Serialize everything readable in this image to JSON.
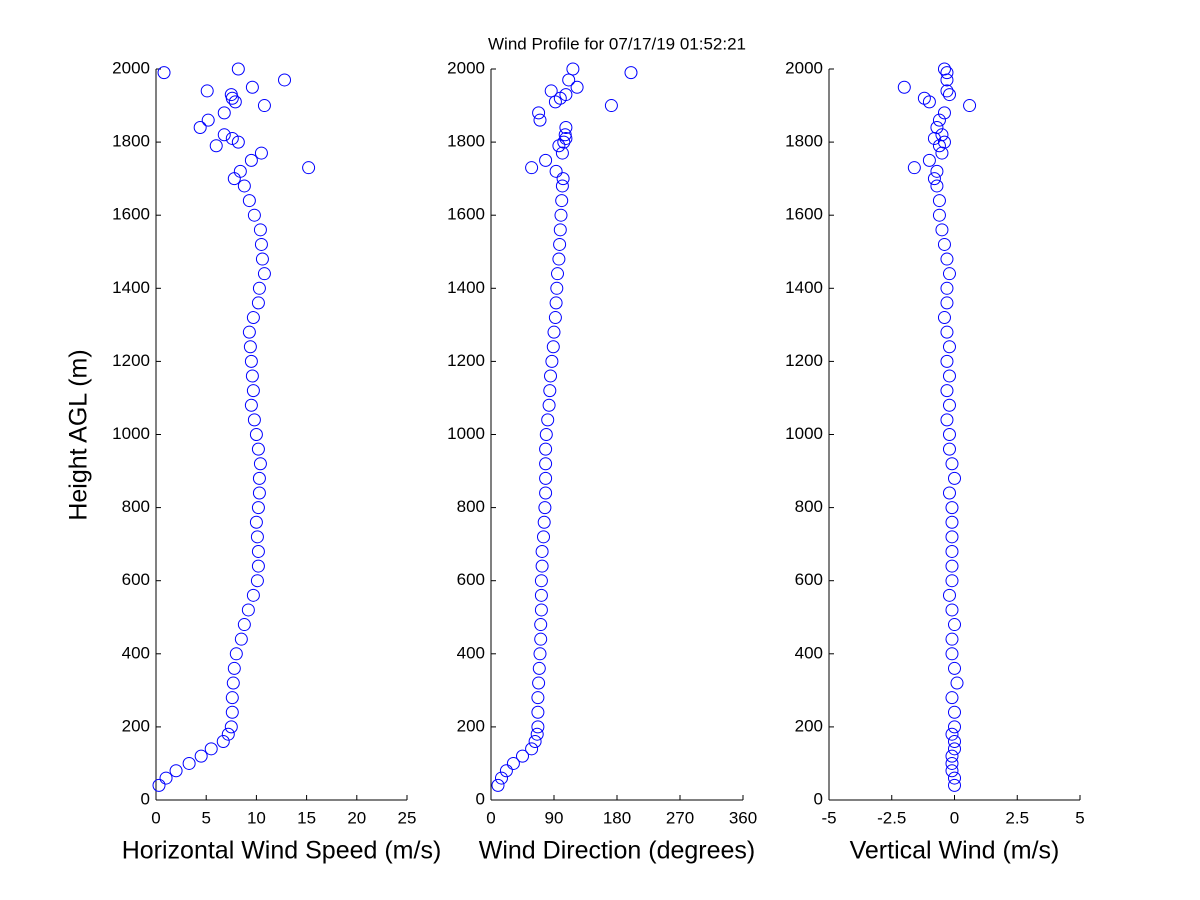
{
  "chart_data": [
    {
      "type": "scatter",
      "title": "Wind Profile for  07/17/19 01:52:21",
      "xlabel": "Horizontal Wind Speed (m/s)",
      "ylabel": "Height AGL (m)",
      "color": "#0000ff",
      "xlim": [
        0,
        25
      ],
      "xticks": [
        0,
        5,
        10,
        15,
        20,
        25
      ],
      "ylim": [
        0,
        2000
      ],
      "yticks": [
        0,
        200,
        400,
        600,
        800,
        1000,
        1200,
        1400,
        1600,
        1800,
        2000
      ],
      "x": [
        0.3,
        1,
        2,
        3.3,
        4.5,
        5.5,
        6.7,
        7.2,
        7.5,
        7.6,
        7.6,
        7.7,
        7.8,
        8,
        8.5,
        8.8,
        9.2,
        9.7,
        10.1,
        10.2,
        10.2,
        10.1,
        10,
        10.2,
        10.3,
        10.3,
        10.4,
        10.2,
        10,
        9.8,
        9.5,
        9.7,
        9.6,
        9.5,
        9.4,
        9.3,
        9.7,
        10.2,
        10.3,
        10.8,
        10.6,
        10.5,
        10.4,
        9.8,
        9.3,
        8.8,
        7.8,
        8.4,
        15.2,
        9.5,
        10.5,
        6,
        8.2,
        7.6,
        6.8,
        4.4,
        5.2,
        6.8,
        10.8,
        7.9,
        7.6,
        7.5,
        5.1,
        9.6,
        12.8,
        0.8,
        8.2
      ],
      "y": [
        40,
        60,
        80,
        100,
        120,
        140,
        160,
        180,
        200,
        240,
        280,
        320,
        360,
        400,
        440,
        480,
        520,
        560,
        600,
        640,
        680,
        720,
        760,
        800,
        840,
        880,
        920,
        960,
        1000,
        1040,
        1080,
        1120,
        1160,
        1200,
        1240,
        1280,
        1320,
        1360,
        1400,
        1440,
        1480,
        1520,
        1560,
        1600,
        1640,
        1680,
        1700,
        1720,
        1730,
        1750,
        1770,
        1790,
        1800,
        1810,
        1820,
        1840,
        1860,
        1880,
        1900,
        1910,
        1920,
        1930,
        1940,
        1950,
        1970,
        1990,
        2000
      ]
    },
    {
      "type": "scatter",
      "xlabel": "Wind Direction (degrees)",
      "color": "#0000ff",
      "xlim": [
        0,
        360
      ],
      "xticks": [
        0,
        90,
        180,
        270,
        360
      ],
      "ylim": [
        0,
        2000
      ],
      "yticks": [
        0,
        200,
        400,
        600,
        800,
        1000,
        1200,
        1400,
        1600,
        1800,
        2000
      ],
      "x": [
        10,
        15,
        22,
        32,
        45,
        58,
        63,
        66,
        67,
        67,
        67,
        68,
        69,
        70,
        71,
        71,
        72,
        72,
        72,
        73,
        73,
        75,
        76,
        77,
        78,
        78,
        78,
        78,
        79,
        81,
        83,
        84,
        85,
        87,
        89,
        90,
        92,
        93,
        94,
        95,
        97,
        98,
        99,
        100,
        101,
        102,
        103,
        93,
        58,
        78,
        102,
        97,
        104,
        107,
        106,
        107,
        70,
        68,
        172,
        92,
        99,
        107,
        86,
        123,
        111,
        200,
        117
      ],
      "y": [
        40,
        60,
        80,
        100,
        120,
        140,
        160,
        180,
        200,
        240,
        280,
        320,
        360,
        400,
        440,
        480,
        520,
        560,
        600,
        640,
        680,
        720,
        760,
        800,
        840,
        880,
        920,
        960,
        1000,
        1040,
        1080,
        1120,
        1160,
        1200,
        1240,
        1280,
        1320,
        1360,
        1400,
        1440,
        1480,
        1520,
        1560,
        1600,
        1640,
        1680,
        1700,
        1720,
        1730,
        1750,
        1770,
        1790,
        1800,
        1810,
        1820,
        1840,
        1860,
        1880,
        1900,
        1910,
        1920,
        1930,
        1940,
        1950,
        1970,
        1990,
        2000
      ]
    },
    {
      "type": "scatter",
      "xlabel": "Vertical Wind (m/s)",
      "color": "#0000ff",
      "xlim": [
        -5,
        5
      ],
      "xticks": [
        -5,
        -2.5,
        0,
        2.5,
        5
      ],
      "ylim": [
        0,
        2000
      ],
      "yticks": [
        0,
        200,
        400,
        600,
        800,
        1000,
        1200,
        1400,
        1600,
        1800,
        2000
      ],
      "x": [
        0,
        0,
        -0.1,
        -0.1,
        -0.1,
        0,
        0,
        -0.1,
        0,
        0,
        -0.1,
        0.1,
        0,
        -0.1,
        -0.1,
        0,
        -0.1,
        -0.2,
        -0.1,
        -0.1,
        -0.1,
        -0.1,
        -0.1,
        -0.1,
        -0.2,
        0,
        -0.1,
        -0.2,
        -0.2,
        -0.3,
        -0.2,
        -0.3,
        -0.2,
        -0.3,
        -0.2,
        -0.3,
        -0.4,
        -0.3,
        -0.3,
        -0.2,
        -0.3,
        -0.4,
        -0.5,
        -0.6,
        -0.6,
        -0.7,
        -0.8,
        -0.7,
        -1.6,
        -1,
        -0.5,
        -0.6,
        -0.4,
        -0.8,
        -0.5,
        -0.7,
        -0.6,
        -0.4,
        0.6,
        -1,
        -1.2,
        -0.2,
        -0.3,
        -2,
        -0.3,
        -0.3,
        -0.4
      ],
      "y": [
        40,
        60,
        80,
        100,
        120,
        140,
        160,
        180,
        200,
        240,
        280,
        320,
        360,
        400,
        440,
        480,
        520,
        560,
        600,
        640,
        680,
        720,
        760,
        800,
        840,
        880,
        920,
        960,
        1000,
        1040,
        1080,
        1120,
        1160,
        1200,
        1240,
        1280,
        1320,
        1360,
        1400,
        1440,
        1480,
        1520,
        1560,
        1600,
        1640,
        1680,
        1700,
        1720,
        1730,
        1750,
        1770,
        1790,
        1800,
        1810,
        1820,
        1840,
        1860,
        1880,
        1900,
        1910,
        1920,
        1930,
        1940,
        1950,
        1970,
        1990,
        2000
      ]
    }
  ]
}
